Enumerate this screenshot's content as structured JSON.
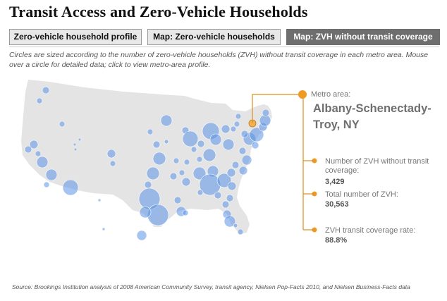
{
  "title": "Transit Access and Zero-Vehicle Households",
  "tabs": [
    {
      "label": "Zero-vehicle household profile"
    },
    {
      "label": "Map: Zero-vehicle households"
    },
    {
      "label": "Map:  ZVH without transit coverage"
    }
  ],
  "description": "Circles are sized according to the number of zero-vehicle households (ZVH) without transit coverage in each metro area. Mouse over a circle for detailed data; click to view metro-area profile.",
  "detail": {
    "metro_label": "Metro area:",
    "metro_name": "Albany-Schenectady-Troy, NY",
    "zvh_without_label": "Number of ZVH without transit coverage:",
    "zvh_without_value": "3,429",
    "total_label": "Total number of ZVH:",
    "total_value": "30,563",
    "rate_label": "ZVH transit coverage rate:",
    "rate_value": "88.8%"
  },
  "source": "Source: Brookings Institution analysis of 2008 American Community Survey, transit agency, Nielsen Pop-Facts 2010, and Nielsen Business-Facts data",
  "colors": {
    "bubble": "#5b93e6",
    "highlight": "#f2a93b",
    "leader": "#d9901f",
    "map_fill": "#e4e4e4",
    "active_tab": "#6e6e6e"
  }
}
